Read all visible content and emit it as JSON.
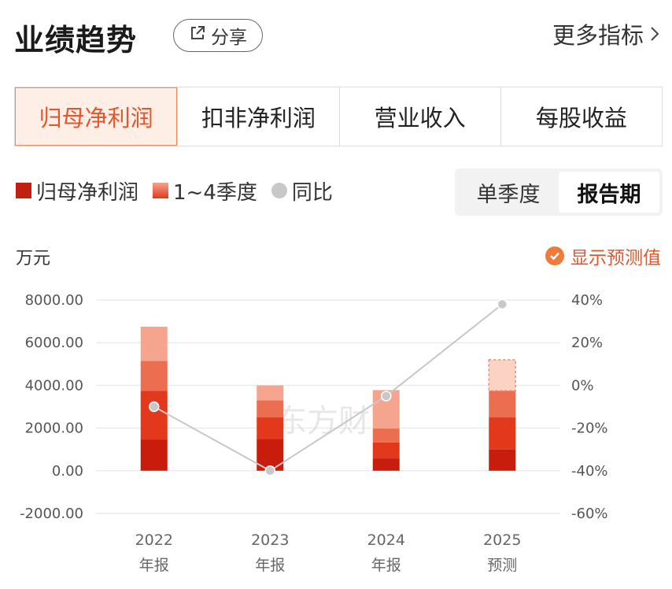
{
  "header": {
    "title": "业绩趋势",
    "share_label": "分享",
    "more_label": "更多指标"
  },
  "tabs": [
    {
      "label": "归母净利润",
      "active": true
    },
    {
      "label": "扣非净利润",
      "active": false
    },
    {
      "label": "营业收入",
      "active": false
    },
    {
      "label": "每股收益",
      "active": false
    }
  ],
  "legend": {
    "items": [
      {
        "label": "归母净利润",
        "color": "#c0200f",
        "shape": "square"
      },
      {
        "label": "1~4季度",
        "color": "#f0603a",
        "shape": "square-gradient"
      },
      {
        "label": "同比",
        "color": "#c8c8c8",
        "shape": "dot"
      }
    ]
  },
  "period_toggle": {
    "options": [
      {
        "label": "单季度",
        "active": false
      },
      {
        "label": "报告期",
        "active": true
      }
    ]
  },
  "unit_label": "万元",
  "forecast_toggle": {
    "label": "显示预测值",
    "checked": true
  },
  "watermark": "东方财富",
  "colors": {
    "q1": "#c81d0d",
    "q2": "#e2391c",
    "q3": "#ec6e51",
    "q4": "#f5a58e",
    "forecast_q4": "#fbd2c4",
    "yoy_line": "#c8c8c8",
    "accent": "#e4572e"
  },
  "chart_data": {
    "type": "bar",
    "stacked": true,
    "categories": [
      {
        "year": "2022",
        "period": "年报"
      },
      {
        "year": "2023",
        "period": "年报"
      },
      {
        "year": "2024",
        "period": "年报"
      },
      {
        "year": "2025",
        "period": "预测"
      }
    ],
    "series": [
      {
        "name": "1季度",
        "values": [
          1450,
          1500,
          580,
          1000
        ]
      },
      {
        "name": "2季度",
        "values": [
          2300,
          1000,
          750,
          1500
        ]
      },
      {
        "name": "3季度",
        "values": [
          1400,
          800,
          650,
          1250
        ]
      },
      {
        "name": "4季度",
        "values": [
          1600,
          700,
          1800,
          1450
        ]
      }
    ],
    "totals": [
      6750,
      4000,
      3780,
      5200
    ],
    "forecast_index": 3,
    "yoy": {
      "name": "同比",
      "values": [
        -10,
        -40,
        -5,
        38
      ]
    },
    "ylim_left": [
      -2000,
      8000
    ],
    "yticks_left": [
      "8000.00",
      "6000.00",
      "4000.00",
      "2000.00",
      "0.00",
      "-2000.00"
    ],
    "ylim_right": [
      -60,
      40
    ],
    "yticks_right": [
      "40%",
      "20%",
      "0%",
      "-20%",
      "-40%",
      "-60%"
    ],
    "grid": true
  }
}
